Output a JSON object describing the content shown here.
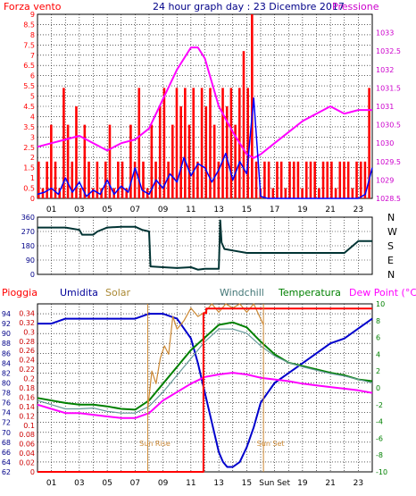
{
  "header": {
    "left_label": "Forza vento",
    "title": "24 hour graph day : 23 Dicembre 2017",
    "right_label": "Pressione"
  },
  "colors": {
    "wind": "#ff0000",
    "pressure": "#ff00ff",
    "gust_line": "#0000ff",
    "direction": "#003333",
    "rain_box": "#ff0000",
    "humidity": "#0000cc",
    "solar": "#cc8833",
    "windchill": "#669999",
    "temperature": "#008000",
    "dewpoint": "#ff00ff",
    "grid": "#000000",
    "axis_text_left": "#000088",
    "axis_text_right": "#aa0088",
    "legend_pioggia": "#ff0000",
    "legend_umidita": "#000099",
    "legend_solar": "#aa8833",
    "legend_windchill": "#447777",
    "legend_temperatura": "#008000",
    "legend_dewpoint": "#ff00ff"
  },
  "x_ticks": {
    "top": [
      "01",
      "03",
      "05",
      "07",
      "09",
      "11",
      "13",
      "15",
      "17",
      "19",
      "21",
      "23"
    ],
    "bottom": [
      "01",
      "03",
      "05",
      "07",
      "09",
      "11",
      "13",
      "15",
      "Sun Set",
      "19",
      "21",
      "23"
    ]
  },
  "chart_data": [
    {
      "type": "bar",
      "id": "wind",
      "title": "24 hour graph day : 23 Dicembre 2017",
      "ylabel": "Forza vento",
      "ylim": [
        0,
        9
      ],
      "xlim": [
        0,
        24
      ],
      "y_ticks": [
        "0",
        "0.5",
        "1",
        "1.5",
        "2",
        "2.5",
        "3",
        "3.5",
        "4",
        "4.5",
        "5",
        "5.5",
        "6",
        "6.5",
        "7",
        "7.5",
        "8",
        "8.5",
        "9"
      ],
      "series": [
        {
          "name": "Forza vento",
          "type": "bar",
          "hours": [
            0.0,
            0.3,
            0.6,
            0.9,
            1.2,
            1.5,
            1.8,
            2.1,
            2.4,
            2.7,
            3.0,
            3.3,
            3.6,
            3.9,
            4.2,
            4.5,
            4.8,
            5.1,
            5.4,
            5.7,
            6.0,
            6.3,
            6.6,
            6.9,
            7.2,
            7.5,
            7.8,
            8.1,
            8.4,
            8.7,
            9.0,
            9.3,
            9.6,
            9.9,
            10.2,
            10.5,
            10.8,
            11.1,
            11.4,
            11.7,
            12.0,
            12.3,
            12.6,
            12.9,
            13.2,
            13.5,
            13.8,
            14.1,
            14.4,
            14.7,
            15.0,
            15.3,
            15.6,
            15.9,
            16.2,
            16.5,
            16.8,
            17.1,
            17.4,
            17.7,
            18.0,
            18.3,
            18.6,
            18.9,
            19.2,
            19.5,
            19.8,
            20.1,
            20.4,
            20.7,
            21.0,
            21.3,
            21.6,
            21.9,
            22.2,
            22.5,
            22.8,
            23.1,
            23.4,
            23.7
          ],
          "values": [
            1.8,
            0.5,
            1.8,
            3.6,
            1.8,
            0.5,
            5.4,
            3.6,
            1.8,
            4.5,
            0.5,
            3.6,
            1.8,
            0.5,
            1.8,
            0.5,
            1.8,
            3.6,
            0.5,
            1.8,
            1.8,
            0.5,
            3.6,
            1.8,
            5.4,
            1.8,
            0.5,
            3.6,
            1.8,
            4.5,
            5.4,
            1.8,
            3.6,
            5.4,
            4.5,
            5.4,
            3.6,
            5.4,
            1.8,
            5.4,
            4.5,
            5.4,
            3.6,
            1.8,
            5.4,
            4.5,
            5.4,
            3.6,
            5.4,
            7.2,
            5.4,
            9.0,
            1.8,
            0.5,
            1.8,
            1.8,
            0.5,
            1.8,
            1.8,
            0.5,
            1.8,
            1.8,
            1.8,
            0.5,
            1.8,
            1.8,
            1.8,
            0.5,
            1.8,
            1.8,
            1.8,
            0.5,
            1.8,
            1.8,
            1.8,
            0.5,
            1.8,
            1.8,
            1.8,
            5.4
          ]
        },
        {
          "name": "Raffica",
          "type": "line",
          "hours": [
            0,
            0.5,
            1,
            1.5,
            2,
            2.5,
            3,
            3.5,
            4,
            4.5,
            5,
            5.5,
            6,
            6.5,
            7,
            7.5,
            8,
            8.5,
            9,
            9.5,
            10,
            10.5,
            11,
            11.5,
            12,
            12.5,
            13,
            13.5,
            14,
            14.5,
            15,
            15.5,
            16,
            16.5,
            17,
            17.5,
            18,
            18.5,
            19,
            19.5,
            20,
            20.5,
            21,
            21.5,
            22,
            22.5,
            23,
            23.5,
            24
          ],
          "values": [
            0.2,
            0.3,
            0.5,
            0.2,
            1.0,
            0.3,
            0.8,
            0.1,
            0.4,
            0.2,
            0.9,
            0.2,
            0.6,
            0.3,
            1.5,
            0.4,
            0.2,
            0.9,
            0.5,
            1.2,
            0.8,
            2.0,
            1.1,
            1.7,
            1.5,
            0.8,
            1.4,
            2.2,
            0.9,
            1.8,
            1.2,
            4.9,
            0.1,
            0.0,
            0.0,
            0.0,
            0.0,
            0.0,
            0.0,
            0.0,
            0.0,
            0.0,
            0.0,
            0.0,
            0.0,
            0.0,
            0.0,
            0.2,
            1.5
          ]
        }
      ]
    },
    {
      "type": "line",
      "id": "pressure",
      "ylabel": "Pressione",
      "ylim": [
        1028.5,
        1033.5
      ],
      "y_ticks": [
        "1028.5",
        "1029",
        "1029.5",
        "1030",
        "1030.5",
        "1031",
        "1031.5",
        "1032",
        "1032.5",
        "1033"
      ],
      "series": [
        {
          "name": "Pressione",
          "hours": [
            0,
            1,
            2,
            3,
            4,
            5,
            6,
            7,
            8,
            9,
            10,
            11,
            11.5,
            12,
            13,
            14,
            15,
            15.5,
            16,
            17,
            18,
            19,
            20,
            21,
            22,
            23,
            24
          ],
          "values": [
            1029.9,
            1030.0,
            1030.1,
            1030.2,
            1030.0,
            1029.8,
            1030.0,
            1030.1,
            1030.4,
            1031.2,
            1032.0,
            1032.6,
            1032.6,
            1032.3,
            1031.0,
            1030.3,
            1029.7,
            1029.6,
            1029.7,
            1030.0,
            1030.3,
            1030.6,
            1030.8,
            1031.0,
            1030.8,
            1030.9,
            1030.9
          ]
        }
      ]
    },
    {
      "type": "line",
      "id": "direction",
      "ylim": [
        0,
        360
      ],
      "y_ticks": [
        "0",
        "90",
        "180",
        "270",
        "360"
      ],
      "right_labels": [
        "N",
        "W",
        "S",
        "E",
        "N"
      ],
      "series": [
        {
          "name": "Direzione",
          "hours": [
            0,
            1,
            2,
            3,
            3.2,
            4,
            4.3,
            5,
            6,
            7,
            7.5,
            8,
            8.1,
            9,
            10,
            11,
            11.5,
            12,
            13,
            13.1,
            13.2,
            13.4,
            14,
            15,
            16,
            17,
            18,
            19,
            20,
            21,
            22,
            23,
            24
          ],
          "values": [
            295,
            295,
            295,
            280,
            250,
            250,
            270,
            295,
            300,
            300,
            280,
            270,
            50,
            45,
            40,
            45,
            30,
            35,
            35,
            340,
            200,
            160,
            150,
            135,
            135,
            135,
            135,
            135,
            135,
            135,
            135,
            210,
            210
          ]
        }
      ]
    },
    {
      "type": "line",
      "id": "climate",
      "left_axis": {
        "label": "Umidita",
        "ylim": [
          62,
          96
        ],
        "ticks": [
          "62",
          "64",
          "66",
          "68",
          "70",
          "72",
          "74",
          "76",
          "78",
          "80",
          "82",
          "84",
          "86",
          "88",
          "90",
          "92",
          "94"
        ]
      },
      "rain_axis": {
        "label": "Pioggia",
        "ylim": [
          0,
          0.36
        ],
        "ticks": [
          "0",
          "0.02",
          "0.04",
          "0.06",
          "0.08",
          "0.1",
          "0.12",
          "0.14",
          "0.16",
          "0.18",
          "0.2",
          "0.22",
          "0.24",
          "0.26",
          "0.28",
          "0.3",
          "0.32",
          "0.34"
        ]
      },
      "right_axis": {
        "label": "Dew Point (°C)",
        "ylim": [
          -10,
          10
        ],
        "ticks": [
          "-10",
          "-8",
          "-6",
          "-4",
          "-2",
          "0",
          "2",
          "4",
          "6",
          "8",
          "10"
        ]
      },
      "legend": [
        "Pioggia",
        "Umidita",
        "Solar",
        "Windchill",
        "Temperatura",
        "Dew Point (°C)"
      ],
      "annotations": [
        {
          "text": "Sun Rise",
          "hour": 7.9
        },
        {
          "text": "Sun Set",
          "hour": 16.2
        }
      ],
      "series": [
        {
          "name": "Umidita",
          "axis": "left",
          "hours": [
            0,
            1,
            2,
            3,
            4,
            5,
            6,
            7,
            8,
            9,
            10,
            11,
            11.5,
            12,
            12.5,
            13,
            13.3,
            13.6,
            14,
            14.5,
            15,
            15.5,
            16,
            17,
            18,
            19,
            20,
            21,
            22,
            23,
            24
          ],
          "values": [
            92,
            92,
            93,
            93,
            93,
            93,
            93,
            93,
            94,
            94,
            93,
            89,
            84,
            78,
            72,
            66,
            64,
            63,
            63,
            64,
            67,
            71,
            76,
            80,
            82,
            84,
            86,
            88,
            89,
            91,
            93
          ]
        },
        {
          "name": "Temperatura",
          "axis": "right",
          "hours": [
            0,
            1,
            2,
            3,
            4,
            5,
            6,
            7,
            8,
            9,
            10,
            11,
            12,
            13,
            14,
            15,
            16,
            17,
            18,
            19,
            20,
            21,
            22,
            23,
            24
          ],
          "values": [
            -1.2,
            -1.5,
            -1.8,
            -2.0,
            -2.0,
            -2.2,
            -2.5,
            -2.6,
            -1.5,
            0.5,
            2.5,
            4.5,
            6.0,
            7.5,
            7.8,
            7.2,
            5.5,
            4.0,
            3.0,
            2.6,
            2.2,
            1.8,
            1.5,
            1.0,
            0.8
          ]
        },
        {
          "name": "Windchill",
          "axis": "right",
          "hours": [
            0,
            1,
            2,
            3,
            4,
            5,
            6,
            7,
            8,
            9,
            10,
            11,
            12,
            13,
            14,
            15,
            16,
            17,
            18,
            19,
            20,
            21,
            22,
            23,
            24
          ],
          "values": [
            -1.5,
            -2.0,
            -2.5,
            -2.5,
            -2.4,
            -2.8,
            -3.0,
            -3.0,
            -2.2,
            -0.5,
            1.5,
            3.5,
            5.5,
            7.0,
            7.0,
            6.5,
            5.0,
            3.8,
            3.0,
            2.5,
            2.1,
            1.7,
            1.4,
            1.0,
            0.6
          ]
        },
        {
          "name": "Dew Point (°C)",
          "axis": "right",
          "hours": [
            0,
            1,
            2,
            3,
            4,
            5,
            6,
            7,
            8,
            9,
            10,
            11,
            12,
            13,
            14,
            15,
            16,
            17,
            18,
            19,
            20,
            21,
            22,
            23,
            24
          ],
          "values": [
            -2.0,
            -2.5,
            -3.0,
            -3.0,
            -3.2,
            -3.4,
            -3.6,
            -3.6,
            -3.0,
            -1.5,
            -0.5,
            0.5,
            1.3,
            1.6,
            1.8,
            1.6,
            1.2,
            1.0,
            0.8,
            0.5,
            0.3,
            0.1,
            -0.1,
            -0.3,
            -0.6
          ]
        },
        {
          "name": "Solar",
          "axis": "right",
          "hours": [
            7.9,
            8.2,
            8.5,
            8.8,
            9.1,
            9.4,
            9.7,
            10.0,
            10.5,
            11,
            11.5,
            12,
            12.5,
            13,
            13.5,
            14,
            14.5,
            15,
            15.5,
            16.2
          ],
          "values": [
            -2.6,
            2.0,
            0.5,
            3.5,
            5.0,
            4.0,
            8.5,
            7.0,
            8.0,
            9.5,
            8.5,
            9.0,
            10.0,
            9.0,
            10.0,
            9.5,
            10.0,
            9.0,
            10.0,
            7.5
          ]
        },
        {
          "name": "Pioggia",
          "axis": "rain",
          "hours": [
            0,
            11.9,
            11.9,
            12.1,
            12.1,
            24
          ],
          "values": [
            0,
            0,
            0.34,
            0.34,
            0.35,
            0.35
          ]
        }
      ]
    }
  ]
}
